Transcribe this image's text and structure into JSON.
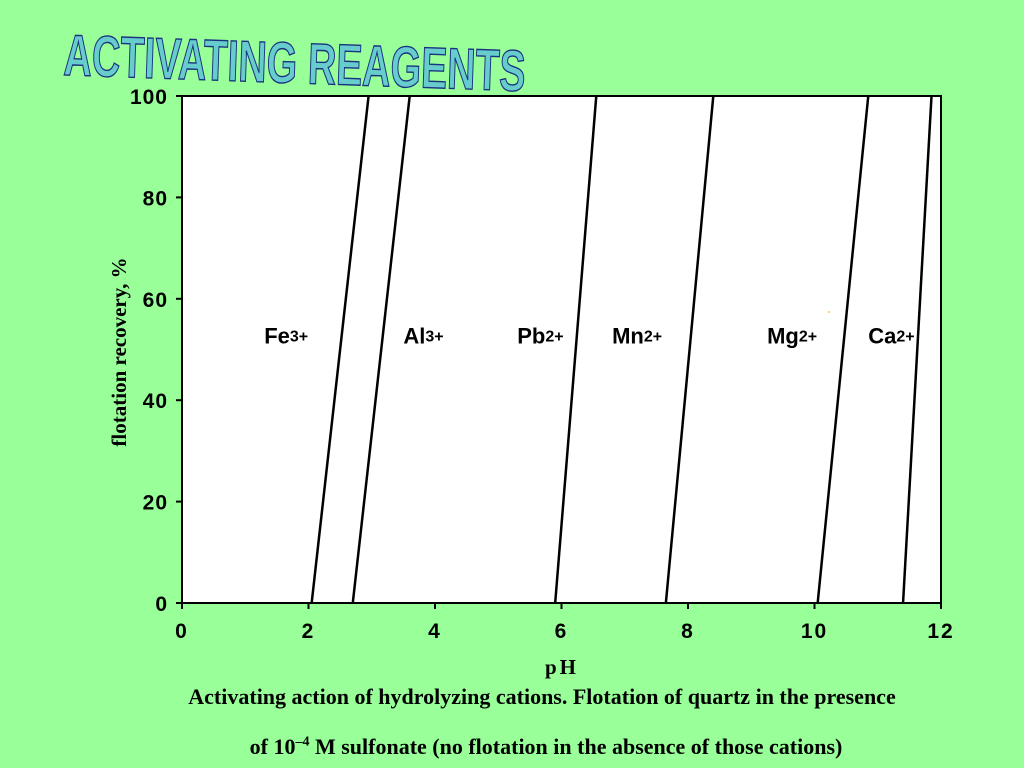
{
  "slide": {
    "background": "#99ff99",
    "title": "ACTIVATING REAGENTS",
    "title_color": "#66cccc",
    "caption_line1": "Activating action of hydrolyzing cations. Flotation of quartz in the presence",
    "caption_line2_prefix": "of 10",
    "caption_line2_sup": "–4",
    "caption_line2_suffix": " M sulfonate (no flotation in the absence of those cations)"
  },
  "chart_data": {
    "type": "line",
    "title": "",
    "xlabel": "pH",
    "ylabel": "flotation recovery, %",
    "xlim": [
      0,
      12
    ],
    "ylim": [
      0,
      100
    ],
    "xticks": [
      "0",
      "2",
      "4",
      "6",
      "8",
      "10",
      "12"
    ],
    "yticks": [
      "0",
      "20",
      "40",
      "60",
      "80",
      "100"
    ],
    "grid": false,
    "series": [
      {
        "name": "Fe",
        "charge": "3+",
        "label_xy": [
          1.3,
          53
        ],
        "points": [
          [
            2.05,
            0
          ],
          [
            2.95,
            100
          ]
        ]
      },
      {
        "name": "Al",
        "charge": "3+",
        "label_xy": [
          3.5,
          53
        ],
        "points": [
          [
            2.7,
            0
          ],
          [
            3.6,
            100
          ]
        ]
      },
      {
        "name": "Pb",
        "charge": "2+",
        "label_xy": [
          5.3,
          53
        ],
        "points": [
          [
            5.9,
            0
          ],
          [
            6.55,
            100
          ]
        ]
      },
      {
        "name": "Mn",
        "charge": "2+",
        "label_xy": [
          6.8,
          53
        ],
        "points": [
          [
            7.65,
            0
          ],
          [
            8.4,
            100
          ]
        ]
      },
      {
        "name": "Mg",
        "charge": "2+",
        "label_xy": [
          9.25,
          53
        ],
        "points": [
          [
            10.05,
            0
          ],
          [
            10.85,
            100
          ]
        ]
      },
      {
        "name": "Ca",
        "charge": "2+",
        "label_xy": [
          10.85,
          53
        ],
        "points": [
          [
            11.4,
            0
          ],
          [
            11.85,
            100
          ]
        ]
      }
    ]
  }
}
